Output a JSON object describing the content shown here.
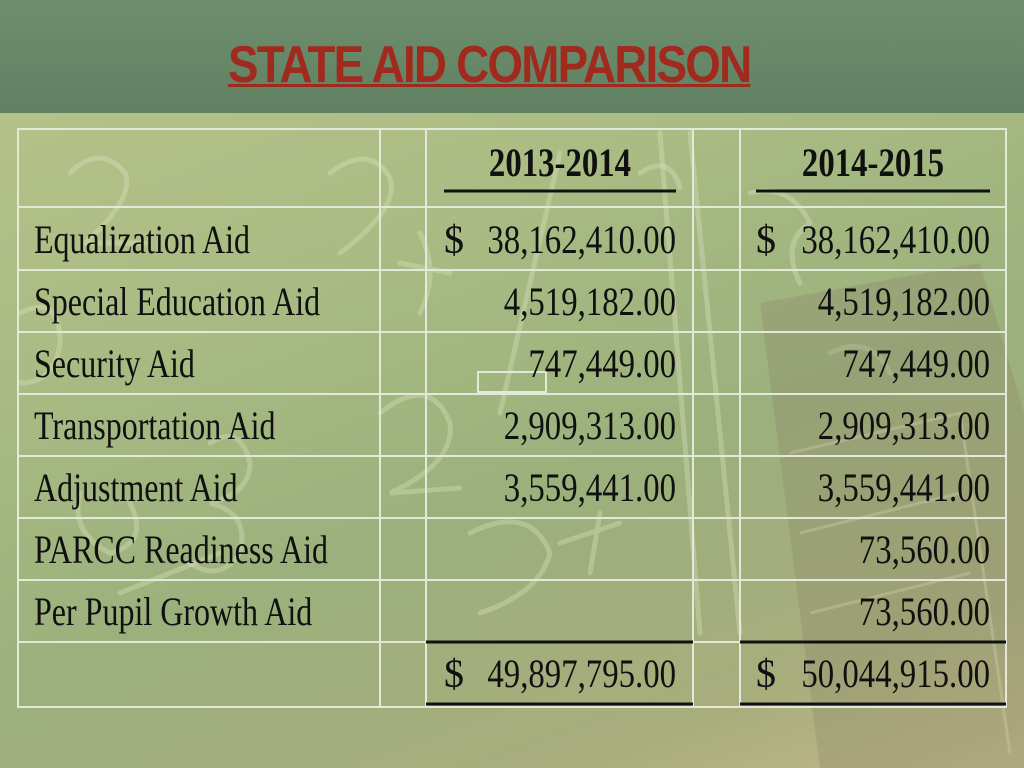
{
  "slide": {
    "title": "STATE AID COMPARISON"
  },
  "table": {
    "columns": [
      "2013-2014",
      "2014-2015"
    ],
    "currency_symbol": "$",
    "rows": [
      {
        "label": "Equalization Aid",
        "y2013": "38,162,410.00",
        "y2014": "38,162,410.00"
      },
      {
        "label": "Special Education Aid",
        "y2013": "4,519,182.00",
        "y2014": "4,519,182.00"
      },
      {
        "label": "Security Aid",
        "y2013": "747,449.00",
        "y2014": "747,449.00"
      },
      {
        "label": "Transportation Aid",
        "y2013": "2,909,313.00",
        "y2014": "2,909,313.00"
      },
      {
        "label": "Adjustment Aid",
        "y2013": "3,559,441.00",
        "y2014": "3,559,441.00"
      },
      {
        "label": "PARCC Readiness Aid",
        "y2013": "",
        "y2014": "73,560.00"
      },
      {
        "label": "Per Pupil Growth Aid",
        "y2013": "",
        "y2014": "73,560.00"
      }
    ],
    "totals": {
      "y2013": "49,897,795.00",
      "y2014": "50,044,915.00"
    }
  }
}
